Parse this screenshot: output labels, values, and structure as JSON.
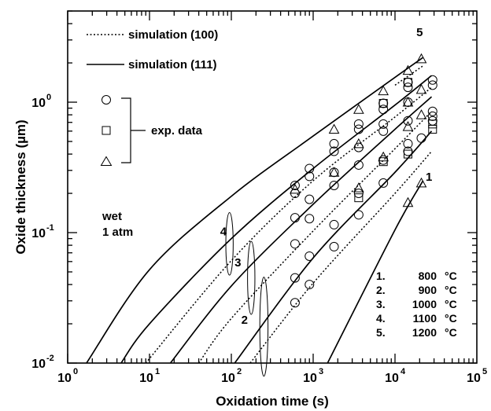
{
  "chart_data": {
    "type": "line",
    "title": "",
    "xlabel": "Oxidation time (s)",
    "ylabel": "Oxide thickness (µm)",
    "xscale": "log",
    "yscale": "log",
    "xlim": [
      1,
      100000
    ],
    "ylim": [
      0.01,
      5
    ],
    "x_ticks": [
      {
        "value": 1,
        "label": "10",
        "exp": "0"
      },
      {
        "value": 10,
        "label": "10",
        "exp": "1"
      },
      {
        "value": 100,
        "label": "10",
        "exp": "2"
      },
      {
        "value": 1000,
        "label": "10",
        "exp": "3"
      },
      {
        "value": 10000,
        "label": "10",
        "exp": "4"
      },
      {
        "value": 100000,
        "label": "10",
        "exp": "5"
      }
    ],
    "y_ticks": [
      {
        "value": 0.01,
        "label": "10",
        "exp": "-2"
      },
      {
        "value": 0.1,
        "label": "10",
        "exp": "-1"
      },
      {
        "value": 1,
        "label": "10",
        "exp": "0"
      }
    ],
    "legend": {
      "placement": "top-left",
      "sim100": "simulation  (100)",
      "sim111": "simulation  (111)",
      "exp": "exp. data"
    },
    "conditions": {
      "line1": "wet",
      "line2": "1 atm"
    },
    "temperature_table": [
      {
        "num": "1.",
        "temp": "800",
        "unit": "°C"
      },
      {
        "num": "2.",
        "temp": "900",
        "unit": "°C"
      },
      {
        "num": "3.",
        "temp": "1000",
        "unit": "°C"
      },
      {
        "num": "4.",
        "temp": "1100",
        "unit": "°C"
      },
      {
        "num": "5.",
        "temp": "1200",
        "unit": "°C"
      }
    ],
    "curve_labels": [
      {
        "text": "1",
        "x": 26000,
        "y": 0.25
      },
      {
        "text": "2",
        "x": 145,
        "y": 0.02
      },
      {
        "text": "3",
        "x": 120,
        "y": 0.055
      },
      {
        "text": "4",
        "x": 80,
        "y": 0.095
      },
      {
        "text": "5",
        "x": 20000,
        "y": 3.2
      }
    ],
    "ellipses": [
      {
        "x": 95,
        "y": 0.082,
        "rx": 0.045,
        "ry": 0.24
      },
      {
        "x": 175,
        "y": 0.045,
        "rx": 0.045,
        "ry": 0.28
      },
      {
        "x": 250,
        "y": 0.019,
        "rx": 0.05,
        "ry": 0.38
      }
    ],
    "series": [
      {
        "id": "111-1200",
        "style": "solid",
        "x": [
          1.7,
          10,
          100,
          1000,
          10000,
          22000
        ],
        "y": [
          0.01,
          0.052,
          0.19,
          0.55,
          1.55,
          2.2
        ]
      },
      {
        "id": "100-1200",
        "style": "dotted",
        "x": [
          10000,
          22000
        ],
        "y": [
          1.35,
          1.9
        ]
      },
      {
        "id": "111-1100",
        "style": "solid",
        "x": [
          4.5,
          10,
          100,
          1000,
          10000,
          28000
        ],
        "y": [
          0.01,
          0.02,
          0.09,
          0.31,
          0.95,
          1.6
        ]
      },
      {
        "id": "100-1100",
        "style": "dotted",
        "x": [
          9,
          100,
          1000,
          10000,
          28000
        ],
        "y": [
          0.01,
          0.061,
          0.25,
          0.77,
          1.3
        ]
      },
      {
        "id": "111-1000",
        "style": "solid",
        "x": [
          18,
          100,
          1000,
          10000,
          28000
        ],
        "y": [
          0.01,
          0.039,
          0.165,
          0.62,
          1.1
        ]
      },
      {
        "id": "100-1000",
        "style": "dotted",
        "x": [
          40,
          100,
          1000,
          10000,
          28000
        ],
        "y": [
          0.01,
          0.022,
          0.103,
          0.44,
          0.85
        ]
      },
      {
        "id": "111-900",
        "style": "solid",
        "x": [
          110,
          1000,
          10000,
          28000
        ],
        "y": [
          0.01,
          0.064,
          0.29,
          0.6
        ]
      },
      {
        "id": "100-900",
        "style": "dotted",
        "x": [
          170,
          1000,
          10000,
          28000
        ],
        "y": [
          0.01,
          0.041,
          0.2,
          0.42
        ]
      },
      {
        "id": "111-800",
        "style": "solid",
        "x": [
          1500,
          10000,
          22000
        ],
        "y": [
          0.01,
          0.105,
          0.25
        ]
      }
    ],
    "exp_points": [
      {
        "m": "o",
        "x": 600,
        "y": 0.23
      },
      {
        "m": "o",
        "x": 900,
        "y": 0.31
      },
      {
        "m": "o",
        "x": 1800,
        "y": 0.48
      },
      {
        "m": "o",
        "x": 3600,
        "y": 0.68
      },
      {
        "m": "o",
        "x": 7200,
        "y": 0.98
      },
      {
        "m": "o",
        "x": 14400,
        "y": 1.42
      },
      {
        "m": "o",
        "x": 28800,
        "y": 1.48
      },
      {
        "m": "o",
        "x": 600,
        "y": 0.2
      },
      {
        "m": "o",
        "x": 900,
        "y": 0.27
      },
      {
        "m": "o",
        "x": 1800,
        "y": 0.42
      },
      {
        "m": "o",
        "x": 3600,
        "y": 0.62
      },
      {
        "m": "o",
        "x": 7200,
        "y": 0.88
      },
      {
        "m": "o",
        "x": 14400,
        "y": 1.3
      },
      {
        "m": "o",
        "x": 28800,
        "y": 1.35
      },
      {
        "m": "o",
        "x": 600,
        "y": 0.13
      },
      {
        "m": "o",
        "x": 900,
        "y": 0.18
      },
      {
        "m": "o",
        "x": 1800,
        "y": 0.29
      },
      {
        "m": "o",
        "x": 3600,
        "y": 0.45
      },
      {
        "m": "o",
        "x": 7200,
        "y": 0.68
      },
      {
        "m": "o",
        "x": 14400,
        "y": 1.0
      },
      {
        "m": "o",
        "x": 28800,
        "y": 0.85
      },
      {
        "m": "o",
        "x": 600,
        "y": 0.082
      },
      {
        "m": "o",
        "x": 900,
        "y": 0.128
      },
      {
        "m": "o",
        "x": 1800,
        "y": 0.23
      },
      {
        "m": "o",
        "x": 3600,
        "y": 0.33
      },
      {
        "m": "o",
        "x": 7200,
        "y": 0.6
      },
      {
        "m": "o",
        "x": 14400,
        "y": 0.72
      },
      {
        "m": "o",
        "x": 28800,
        "y": 0.78
      },
      {
        "m": "o",
        "x": 600,
        "y": 0.045
      },
      {
        "m": "o",
        "x": 900,
        "y": 0.066
      },
      {
        "m": "o",
        "x": 1800,
        "y": 0.115
      },
      {
        "m": "o",
        "x": 3600,
        "y": 0.2
      },
      {
        "m": "o",
        "x": 7200,
        "y": 0.36
      },
      {
        "m": "o",
        "x": 14400,
        "y": 0.48
      },
      {
        "m": "o",
        "x": 21000,
        "y": 0.53
      },
      {
        "m": "o",
        "x": 28800,
        "y": 0.72
      },
      {
        "m": "o",
        "x": 600,
        "y": 0.029
      },
      {
        "m": "o",
        "x": 900,
        "y": 0.04
      },
      {
        "m": "o",
        "x": 1800,
        "y": 0.078
      },
      {
        "m": "o",
        "x": 3600,
        "y": 0.137
      },
      {
        "m": "o",
        "x": 7200,
        "y": 0.24
      },
      {
        "m": "o",
        "x": 14400,
        "y": 0.42
      },
      {
        "m": "s",
        "x": 3600,
        "y": 0.185
      },
      {
        "m": "s",
        "x": 7200,
        "y": 0.35
      },
      {
        "m": "s",
        "x": 14400,
        "y": 0.4
      },
      {
        "m": "s",
        "x": 28800,
        "y": 0.62
      },
      {
        "m": "s",
        "x": 28800,
        "y": 0.68
      },
      {
        "m": "s",
        "x": 7200,
        "y": 0.98
      },
      {
        "m": "s",
        "x": 14400,
        "y": 1.42
      },
      {
        "m": "t",
        "x": 600,
        "y": 0.215
      },
      {
        "m": "t",
        "x": 1800,
        "y": 0.62
      },
      {
        "m": "t",
        "x": 3600,
        "y": 0.88
      },
      {
        "m": "t",
        "x": 7200,
        "y": 1.22
      },
      {
        "m": "t",
        "x": 14400,
        "y": 1.75
      },
      {
        "m": "t",
        "x": 21000,
        "y": 2.15
      },
      {
        "m": "t",
        "x": 1800,
        "y": 0.29
      },
      {
        "m": "t",
        "x": 3600,
        "y": 0.48
      },
      {
        "m": "t",
        "x": 14400,
        "y": 1.0
      },
      {
        "m": "t",
        "x": 21000,
        "y": 1.25
      },
      {
        "m": "t",
        "x": 3600,
        "y": 0.22
      },
      {
        "m": "t",
        "x": 7200,
        "y": 0.38
      },
      {
        "m": "t",
        "x": 14400,
        "y": 0.65
      },
      {
        "m": "t",
        "x": 21000,
        "y": 0.8
      },
      {
        "m": "t",
        "x": 14400,
        "y": 0.17
      },
      {
        "m": "t",
        "x": 21000,
        "y": 0.24
      }
    ]
  }
}
